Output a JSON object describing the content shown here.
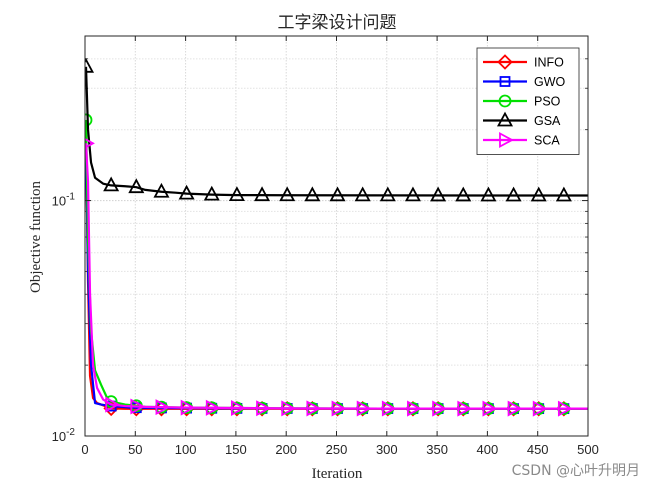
{
  "chart_data": {
    "type": "line",
    "title": "工字梁设计问题",
    "xlabel": "Iteration",
    "ylabel": "Objective function",
    "xlim": [
      0,
      500
    ],
    "ylim": [
      0.01,
      0.5
    ],
    "yscale": "log",
    "grid": true,
    "legend_position": "top-right",
    "x_ticks": [
      0,
      50,
      100,
      150,
      200,
      250,
      300,
      350,
      400,
      450,
      500
    ],
    "y_ticks": [
      {
        "value": 0.01,
        "base": "10",
        "exp": "-2"
      },
      {
        "value": 0.1,
        "base": "10",
        "exp": "-1"
      }
    ],
    "series": [
      {
        "name": "INFO",
        "color": "#ff0000",
        "marker": "diamond",
        "points": [
          [
            1,
            0.175
          ],
          [
            3,
            0.045
          ],
          [
            5,
            0.018
          ],
          [
            8,
            0.0145
          ],
          [
            12,
            0.0138
          ],
          [
            18,
            0.0135
          ],
          [
            26,
            0.0131
          ],
          [
            40,
            0.01305
          ],
          [
            60,
            0.01305
          ],
          [
            100,
            0.01305
          ],
          [
            200,
            0.01305
          ],
          [
            300,
            0.01305
          ],
          [
            400,
            0.01305
          ],
          [
            500,
            0.01305
          ]
        ],
        "marker_x": [
          26,
          51,
          76,
          101,
          126,
          151,
          176,
          201,
          226,
          251,
          276,
          301,
          326,
          351,
          376,
          401,
          426,
          451,
          476
        ]
      },
      {
        "name": "GWO",
        "color": "#0000ff",
        "marker": "square",
        "points": [
          [
            1,
            0.175
          ],
          [
            3,
            0.05
          ],
          [
            6,
            0.02
          ],
          [
            10,
            0.0138
          ],
          [
            16,
            0.0136
          ],
          [
            26,
            0.0134
          ],
          [
            45,
            0.0132
          ],
          [
            80,
            0.01315
          ],
          [
            150,
            0.0131
          ],
          [
            250,
            0.01308
          ],
          [
            500,
            0.01307
          ]
        ],
        "marker_x": [
          26,
          51,
          76,
          101,
          126,
          151,
          176,
          201,
          226,
          251,
          276,
          301,
          326,
          351,
          376,
          401,
          426,
          451,
          476
        ]
      },
      {
        "name": "PSO",
        "color": "#00e000",
        "marker": "circle",
        "points": [
          [
            1,
            0.22
          ],
          [
            3,
            0.07
          ],
          [
            6,
            0.028
          ],
          [
            10,
            0.019
          ],
          [
            16,
            0.0165
          ],
          [
            22,
            0.0145
          ],
          [
            26,
            0.014
          ],
          [
            40,
            0.0136
          ],
          [
            60,
            0.0133
          ],
          [
            100,
            0.0132
          ],
          [
            200,
            0.0131
          ],
          [
            300,
            0.01308
          ],
          [
            500,
            0.01307
          ]
        ],
        "marker_x": [
          1,
          26,
          51,
          76,
          101,
          126,
          151,
          176,
          201,
          226,
          251,
          276,
          301,
          326,
          351,
          376,
          401,
          426,
          451,
          476
        ]
      },
      {
        "name": "GSA",
        "color": "#000000",
        "marker": "triangle-up",
        "points": [
          [
            1,
            0.37
          ],
          [
            3,
            0.2
          ],
          [
            6,
            0.145
          ],
          [
            10,
            0.125
          ],
          [
            18,
            0.118
          ],
          [
            26,
            0.116
          ],
          [
            40,
            0.115
          ],
          [
            51,
            0.114
          ],
          [
            60,
            0.111
          ],
          [
            76,
            0.109
          ],
          [
            90,
            0.108
          ],
          [
            101,
            0.107
          ],
          [
            126,
            0.106
          ],
          [
            151,
            0.1055
          ],
          [
            200,
            0.1053
          ],
          [
            300,
            0.1052
          ],
          [
            400,
            0.1051
          ],
          [
            500,
            0.1051
          ]
        ],
        "marker_x": [
          1,
          26,
          51,
          76,
          101,
          126,
          151,
          176,
          201,
          226,
          251,
          276,
          301,
          326,
          351,
          376,
          401,
          426,
          451,
          476
        ]
      },
      {
        "name": "SCA",
        "color": "#ff00ff",
        "marker": "triangle-right",
        "points": [
          [
            1,
            0.175
          ],
          [
            3,
            0.12
          ],
          [
            5,
            0.04
          ],
          [
            8,
            0.02
          ],
          [
            12,
            0.016
          ],
          [
            18,
            0.0143
          ],
          [
            26,
            0.0136
          ],
          [
            40,
            0.0134
          ],
          [
            60,
            0.0133
          ],
          [
            100,
            0.0132
          ],
          [
            200,
            0.0131
          ],
          [
            300,
            0.01308
          ],
          [
            500,
            0.01307
          ]
        ],
        "marker_x": [
          1,
          26,
          51,
          76,
          101,
          126,
          151,
          176,
          201,
          226,
          251,
          276,
          301,
          326,
          351,
          376,
          401,
          426,
          451,
          476
        ]
      }
    ]
  },
  "watermark": "CSDN @心叶升明月"
}
